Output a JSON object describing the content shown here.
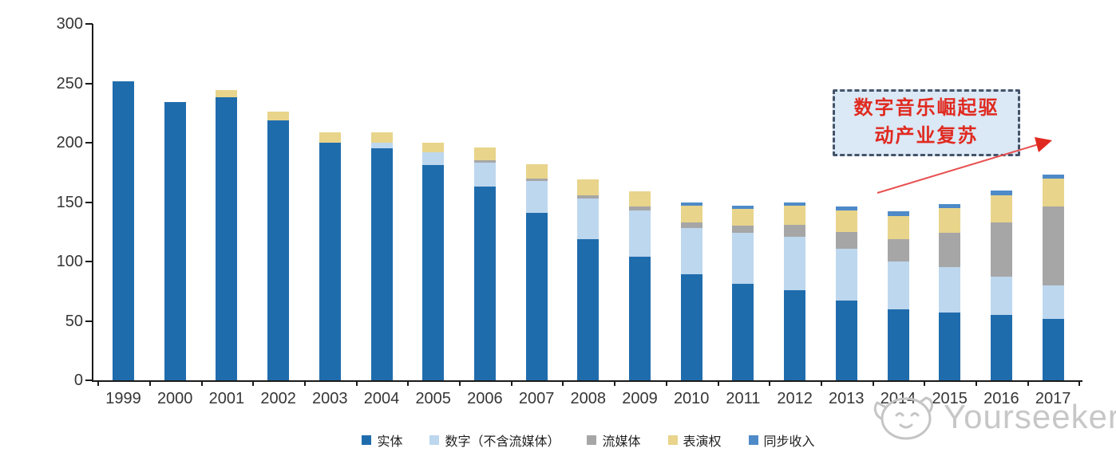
{
  "chart_data": {
    "type": "bar",
    "stacked": true,
    "title": "",
    "categories": [
      "1999",
      "2000",
      "2001",
      "2002",
      "2003",
      "2004",
      "2005",
      "2006",
      "2007",
      "2008",
      "2009",
      "2010",
      "2011",
      "2012",
      "2013",
      "2014",
      "2015",
      "2016",
      "2017"
    ],
    "series": [
      {
        "name": "实体",
        "color": "#1F6CAD",
        "values": [
          252,
          234,
          238,
          219,
          200,
          195,
          181,
          163,
          141,
          119,
          104,
          89,
          81,
          76,
          67,
          60,
          57,
          55,
          52
        ]
      },
      {
        "name": "数字（不含流媒体）",
        "color": "#BDD7EE",
        "values": [
          0,
          0,
          0,
          0,
          0,
          5,
          11,
          20,
          27,
          34,
          39,
          39,
          43,
          45,
          44,
          40,
          38,
          32,
          28
        ]
      },
      {
        "name": "流媒体",
        "color": "#A6A6A6",
        "values": [
          0,
          0,
          0,
          0,
          0,
          0,
          0,
          2,
          2,
          3,
          3,
          5,
          6,
          10,
          14,
          19,
          29,
          46,
          66
        ]
      },
      {
        "name": "表演权",
        "color": "#E8D48B",
        "values": [
          0,
          0,
          6,
          7,
          9,
          9,
          8,
          11,
          12,
          13,
          13,
          14,
          14,
          16,
          18,
          19,
          21,
          23,
          24
        ]
      },
      {
        "name": "同步收入",
        "color": "#4E8AC8",
        "values": [
          0,
          0,
          0,
          0,
          0,
          0,
          0,
          0,
          0,
          0,
          0,
          3,
          3,
          3,
          3,
          4,
          3,
          4,
          3
        ]
      }
    ],
    "y_axis": {
      "min": 0,
      "max": 300,
      "step": 50,
      "tick_labels": [
        "0",
        "50",
        "100",
        "150",
        "200",
        "250",
        "300"
      ]
    },
    "x_axis": {
      "tick_marks_between_categories": true
    },
    "legend_position": "bottom",
    "grid": false
  },
  "annotation": {
    "line1": "数字音乐崛起驱",
    "line2": "动产业复苏",
    "text_color": "#E02A20",
    "box_fill": "#DBE8F5",
    "box_border": "#44546A",
    "arrow_color": "#E85050"
  },
  "watermark": {
    "text": "Yourseeker",
    "color": "#c7c7c7"
  },
  "colors": {
    "axis": "#1a1a1a",
    "tick_text": "#363636",
    "background": "#ffffff"
  }
}
